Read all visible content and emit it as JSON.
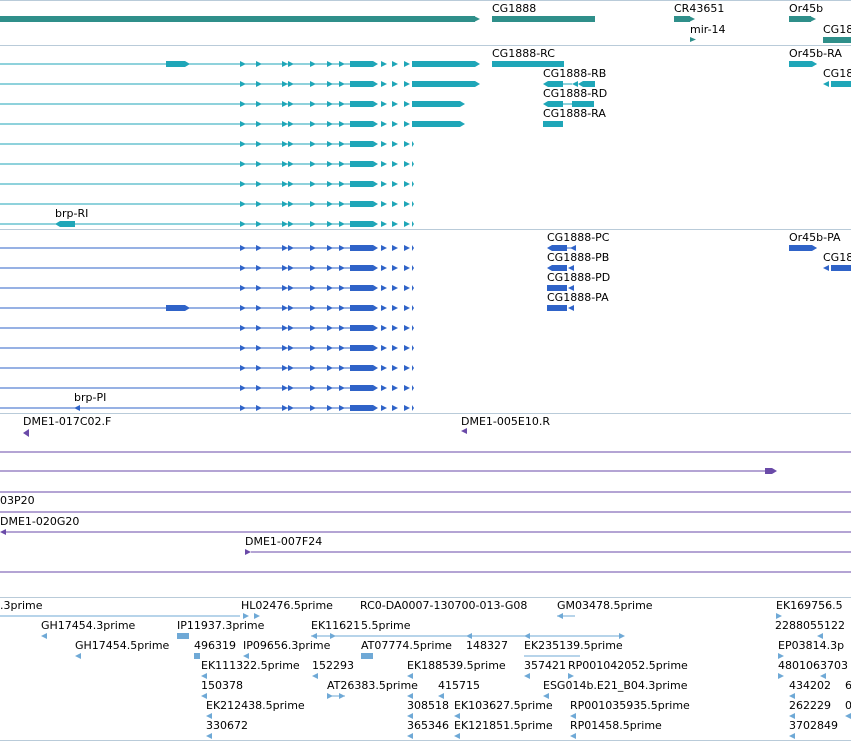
{
  "colors": {
    "gene": "#2f8f8a",
    "transcript": "#1fa6b8",
    "protein": "#2f63c8",
    "clone": "#6a4aa8",
    "est": "#6fa9d6",
    "separator": "#b9cbd9"
  },
  "genes": [
    {
      "label": "CG1888"
    },
    {
      "label": "CR43651"
    },
    {
      "label": "mir-14"
    },
    {
      "label": "Or45b"
    },
    {
      "label": "CG18"
    }
  ],
  "transcripts": [
    {
      "label": "CG1888-RC"
    },
    {
      "label": "CG1888-RB"
    },
    {
      "label": "CG1888-RD"
    },
    {
      "label": "CG1888-RA"
    },
    {
      "label": "Or45b-RA"
    },
    {
      "label": "CG18"
    },
    {
      "label": "brp-RI"
    }
  ],
  "proteins": [
    {
      "label": "CG1888-PC"
    },
    {
      "label": "CG1888-PB"
    },
    {
      "label": "CG1888-PD"
    },
    {
      "label": "CG1888-PA"
    },
    {
      "label": "Or45b-PA"
    },
    {
      "label": "CG18"
    },
    {
      "label": "brp-PI"
    }
  ],
  "clones": [
    {
      "label": "DME1-017C02.F"
    },
    {
      "label": "DME1-005E10.R"
    },
    {
      "label": "03P20"
    },
    {
      "label": "DME1-020G20"
    },
    {
      "label": "DME1-007F24"
    }
  ],
  "ests": [
    {
      "label": ".3prime"
    },
    {
      "label": "HL02476.5prime"
    },
    {
      "label": "RC0-DA0007-130700-013-G08"
    },
    {
      "label": "GM03478.5prime"
    },
    {
      "label": "EK169756.5"
    },
    {
      "label": "GH17454.3prime"
    },
    {
      "label": "IP11937.3prime"
    },
    {
      "label": "EK11621"
    },
    {
      "label": "5.5prime"
    },
    {
      "label": "228805"
    },
    {
      "label": "5122"
    },
    {
      "label": "GH17454.5prime"
    },
    {
      "label": "496319"
    },
    {
      "label": "IP09656.3prime"
    },
    {
      "label": "AT07774.5prime"
    },
    {
      "label": "148327"
    },
    {
      "label": "EK235139.5prime"
    },
    {
      "label": "EP03814.3p"
    },
    {
      "label": "EK111322.5prime"
    },
    {
      "label": "152293"
    },
    {
      "label": "EK188539.5prime"
    },
    {
      "label": "357421"
    },
    {
      "label": "RP001042052.5prime"
    },
    {
      "label": "480106"
    },
    {
      "label": "3703"
    },
    {
      "label": "150378"
    },
    {
      "label": "AT26383.5prime"
    },
    {
      "label": "415715"
    },
    {
      "label": "ESG014b.E21_B04.3prime"
    },
    {
      "label": "434202"
    },
    {
      "label": "6"
    },
    {
      "label": "EK212438.5prime"
    },
    {
      "label": "308518"
    },
    {
      "label": "EK103627.5prime"
    },
    {
      "label": "RP001035935.5prime"
    },
    {
      "label": "262229"
    },
    {
      "label": "0"
    },
    {
      "label": "330672"
    },
    {
      "label": "365346"
    },
    {
      "label": "EK121851.5prime"
    },
    {
      "label": "RP01458.5prime"
    },
    {
      "label": "3702849"
    }
  ]
}
